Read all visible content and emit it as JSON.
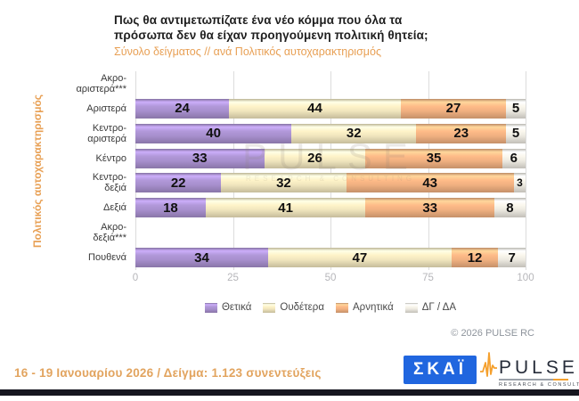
{
  "chart_data": {
    "type": "bar",
    "orientation": "horizontal",
    "stacked": true,
    "title": "Πως θα αντιμετωπίζατε ένα νέο κόμμα που όλα τα\nπρόσωπα δεν θα είχαν προηγούμενη πολιτική θητεία;",
    "subtitle": "Σύνολο δείγματος // ανά Πολιτικός αυτοχαρακτηρισμός",
    "y_axis_title": "Πολιτικός αυτοχαρακτηρισμός",
    "xlabel": "",
    "xlim": [
      0,
      100
    ],
    "x_ticks": [
      0,
      25,
      50,
      75,
      100
    ],
    "grid": "vertical",
    "legend_position": "bottom",
    "categories": [
      "Ακρο-\nαριστερά***",
      "Αριστερά",
      "Κεντρο-\nαριστερά",
      "Κέντρο",
      "Κεντρο-\nδεξιά",
      "Δεξιά",
      "Ακρο-\nδεξιά***",
      "Πουθενά"
    ],
    "series": [
      {
        "name": "Θετικά",
        "color": "#a78fcd",
        "values": [
          null,
          24,
          40,
          33,
          22,
          18,
          null,
          34
        ]
      },
      {
        "name": "Ουδέτερα",
        "color": "#f0e5bd",
        "values": [
          null,
          44,
          32,
          26,
          32,
          41,
          null,
          47
        ]
      },
      {
        "name": "Αρνητικά",
        "color": "#f0b080",
        "values": [
          null,
          27,
          23,
          35,
          43,
          33,
          null,
          12
        ]
      },
      {
        "name": "ΔΓ / ΔΑ",
        "color": "#ece9e0",
        "values": [
          null,
          5,
          5,
          6,
          3,
          8,
          null,
          7
        ]
      }
    ]
  },
  "watermark": {
    "text": "PULSE",
    "subtext": "RESEARCH & CONSULTING"
  },
  "footer": {
    "copyright": "© 2026 PULSE RC",
    "note": "16 - 19 Ιανουαρίου 2026  /  Δείγμα:  1.123 συνεντεύξεις",
    "skai_logo_text": "ΣΚΑΪ",
    "pulse_logo_text": "PULSE",
    "pulse_logo_subtext": "RESEARCH & CONSULTING"
  },
  "colors": {
    "positive_purple": "#a78fcd",
    "neutral_cream": "#f0e5bd",
    "negative_orange": "#f0b080",
    "dkda_gray": "#ece9e0",
    "accent_orange": "#e8a055",
    "footer_tan": "#e2a45f",
    "skai_blue": "#2066df",
    "pulse_orange": "#f5a02d",
    "bottom_bar_navy": "#16161f"
  }
}
